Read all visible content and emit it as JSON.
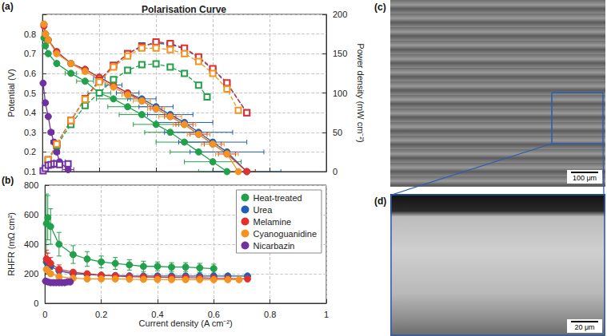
{
  "chart_data": [
    {
      "type": "line",
      "panel": "(a)",
      "title": "Polarisation Curve",
      "y_label": "Potential (V)",
      "y2_label": "Power density (mW cm⁻²)",
      "xlim": [
        0,
        1
      ],
      "xticks": [
        0,
        0.2,
        0.4,
        0.6,
        0.8,
        1
      ],
      "ylim": [
        0.1,
        0.9
      ],
      "yticks": [
        0.1,
        0.2,
        0.3,
        0.4,
        0.5,
        0.6,
        0.7,
        0.8
      ],
      "y2lim": [
        0,
        200
      ],
      "y2ticks": [
        0,
        50,
        100,
        150,
        200
      ],
      "grid": true,
      "tick_labels": "y",
      "series": [
        {
          "name": "Heat-treated",
          "color": "#23a04a",
          "marker": "circle",
          "line_style": "solid",
          "x": [
            0.005,
            0.01,
            0.02,
            0.05,
            0.1,
            0.15,
            0.2,
            0.25,
            0.3,
            0.35,
            0.4,
            0.45,
            0.5,
            0.55,
            0.6,
            0.65
          ],
          "values": [
            0.78,
            0.74,
            0.7,
            0.65,
            0.6,
            0.56,
            0.5,
            0.47,
            0.43,
            0.39,
            0.34,
            0.3,
            0.25,
            0.2,
            0.15,
            0.1
          ],
          "x_error": [
            null,
            null,
            null,
            null,
            0.02,
            0.03,
            0.04,
            0.06,
            0.07,
            0.08,
            0.08,
            0.09,
            0.1,
            0.1,
            0.1,
            0.1
          ]
        },
        {
          "name": "Urea",
          "color": "#1f5fb4",
          "marker": "circle",
          "line_style": "solid",
          "x": [
            0.005,
            0.01,
            0.02,
            0.05,
            0.1,
            0.15,
            0.2,
            0.25,
            0.3,
            0.35,
            0.4,
            0.45,
            0.5,
            0.55,
            0.6,
            0.65,
            0.72
          ],
          "values": [
            0.85,
            0.8,
            0.77,
            0.71,
            0.65,
            0.62,
            0.58,
            0.54,
            0.5,
            0.47,
            0.43,
            0.39,
            0.35,
            0.3,
            0.25,
            0.2,
            0.1
          ],
          "x_error": [
            null,
            null,
            null,
            null,
            null,
            null,
            0.02,
            0.03,
            0.04,
            0.05,
            0.06,
            0.08,
            0.1,
            0.12,
            0.12,
            0.13,
            0.12
          ]
        },
        {
          "name": "Melamine",
          "color": "#e2302d",
          "marker": "circle",
          "line_style": "solid",
          "x": [
            0.005,
            0.01,
            0.02,
            0.05,
            0.1,
            0.15,
            0.2,
            0.25,
            0.3,
            0.35,
            0.4,
            0.45,
            0.5,
            0.55,
            0.6,
            0.65,
            0.72
          ],
          "values": [
            0.84,
            0.8,
            0.77,
            0.71,
            0.65,
            0.62,
            0.58,
            0.54,
            0.5,
            0.46,
            0.42,
            0.38,
            0.34,
            0.29,
            0.24,
            0.19,
            0.1
          ],
          "x_error": [
            null,
            null,
            null,
            null,
            null,
            null,
            null,
            null,
            null,
            null,
            0.02,
            0.02,
            0.03,
            0.03,
            0.03,
            0.03,
            0.03
          ]
        },
        {
          "name": "Cyanoguanidine",
          "color": "#f39322",
          "marker": "circle",
          "line_style": "solid",
          "x": [
            0.005,
            0.01,
            0.02,
            0.05,
            0.1,
            0.15,
            0.2,
            0.25,
            0.3,
            0.35,
            0.4,
            0.45,
            0.5,
            0.55,
            0.6,
            0.65,
            0.69
          ],
          "values": [
            0.85,
            0.8,
            0.77,
            0.7,
            0.65,
            0.61,
            0.57,
            0.53,
            0.49,
            0.46,
            0.42,
            0.38,
            0.34,
            0.29,
            0.24,
            0.19,
            0.1
          ],
          "x_error": [
            null,
            null,
            null,
            null,
            null,
            null,
            null,
            null,
            0.02,
            0.03,
            0.03,
            0.04,
            0.04,
            0.04,
            0.04,
            0.04,
            0.04
          ]
        },
        {
          "name": "Nicarbazin",
          "color": "#7030a0",
          "marker": "circle",
          "line_style": "solid",
          "x": [
            0.002,
            0.01,
            0.02,
            0.03,
            0.04,
            0.05,
            0.06,
            0.09
          ],
          "values": [
            0.55,
            0.45,
            0.38,
            0.3,
            0.25,
            0.2,
            0.15,
            0.11
          ],
          "x_error": [
            null,
            null,
            null,
            0.01,
            0.01,
            0.01,
            0.02,
            0.02
          ]
        },
        {
          "name": "Heat-treated",
          "color": "#23a04a",
          "marker": "square",
          "line_style": "dashed",
          "axis": "y2",
          "x": [
            0.02,
            0.05,
            0.1,
            0.15,
            0.2,
            0.25,
            0.3,
            0.35,
            0.4,
            0.45,
            0.5,
            0.55,
            0.58
          ],
          "values": [
            14,
            33,
            60,
            84,
            100,
            117,
            129,
            136,
            137,
            133,
            125,
            110,
            95
          ]
        },
        {
          "name": "Urea",
          "color": "#1f5fb4",
          "marker": "square",
          "line_style": "dashed",
          "axis": "y2",
          "x": [
            0.02,
            0.05,
            0.1,
            0.15,
            0.2,
            0.25,
            0.3,
            0.35,
            0.4,
            0.45,
            0.5,
            0.55,
            0.6,
            0.65,
            0.72
          ],
          "values": [
            15,
            35,
            65,
            93,
            116,
            135,
            150,
            160,
            163,
            162,
            156,
            145,
            130,
            112,
            75
          ]
        },
        {
          "name": "Melamine",
          "color": "#e2302d",
          "marker": "square",
          "line_style": "dashed",
          "axis": "y2",
          "x": [
            0.02,
            0.05,
            0.1,
            0.15,
            0.2,
            0.25,
            0.3,
            0.35,
            0.4,
            0.45,
            0.5,
            0.55,
            0.6,
            0.65,
            0.72
          ],
          "values": [
            15,
            35,
            65,
            93,
            116,
            135,
            150,
            159,
            165,
            163,
            157,
            146,
            131,
            113,
            75
          ]
        },
        {
          "name": "Cyanoguanidine",
          "color": "#f39322",
          "marker": "square",
          "line_style": "dashed",
          "axis": "y2",
          "x": [
            0.02,
            0.05,
            0.1,
            0.15,
            0.2,
            0.25,
            0.3,
            0.35,
            0.4,
            0.45,
            0.5,
            0.55,
            0.6,
            0.65,
            0.69
          ],
          "values": [
            15,
            35,
            65,
            92,
            114,
            133,
            147,
            157,
            157,
            155,
            150,
            140,
            125,
            105,
            78
          ]
        },
        {
          "name": "Nicarbazin",
          "color": "#7030a0",
          "marker": "square",
          "line_style": "dashed",
          "axis": "y2",
          "x": [
            0.002,
            0.01,
            0.02,
            0.03,
            0.04,
            0.05,
            0.06,
            0.09
          ],
          "values": [
            1,
            4,
            8,
            9,
            10,
            10,
            9,
            10
          ]
        }
      ]
    },
    {
      "type": "line",
      "panel": "(b)",
      "x_label": "Current density (A cm⁻²)",
      "y_label": "RHFR (mΩ cm²)",
      "xlim": [
        0,
        1
      ],
      "xticks": [
        0,
        0.2,
        0.4,
        0.6,
        0.8,
        1
      ],
      "ylim": [
        0,
        800
      ],
      "yticks": [
        0,
        200,
        400,
        600,
        800
      ],
      "grid": true,
      "legend": "upper right",
      "series": [
        {
          "name": "Heat-treated",
          "color": "#23a04a",
          "marker": "circle",
          "line_style": "solid",
          "x": [
            0.005,
            0.01,
            0.02,
            0.05,
            0.1,
            0.15,
            0.2,
            0.25,
            0.3,
            0.35,
            0.4,
            0.45,
            0.5,
            0.55,
            0.6
          ],
          "values": [
            540,
            580,
            520,
            400,
            330,
            300,
            280,
            270,
            260,
            250,
            250,
            245,
            245,
            240,
            235
          ],
          "y_error": [
            200,
            150,
            120,
            80,
            60,
            50,
            40,
            40,
            35,
            35,
            30,
            30,
            30,
            30,
            30
          ]
        },
        {
          "name": "Urea",
          "color": "#1f5fb4",
          "marker": "circle",
          "line_style": "solid",
          "x": [
            0.005,
            0.01,
            0.02,
            0.05,
            0.1,
            0.15,
            0.2,
            0.25,
            0.3,
            0.35,
            0.4,
            0.45,
            0.5,
            0.55,
            0.6,
            0.65,
            0.72
          ],
          "values": [
            280,
            270,
            250,
            220,
            200,
            195,
            190,
            188,
            186,
            185,
            185,
            185,
            185,
            185,
            185,
            185,
            185
          ]
        },
        {
          "name": "Melamine",
          "color": "#e2302d",
          "marker": "circle",
          "line_style": "solid",
          "x": [
            0.005,
            0.01,
            0.02,
            0.05,
            0.1,
            0.15,
            0.2,
            0.25,
            0.3,
            0.35,
            0.4,
            0.45,
            0.5,
            0.55,
            0.6,
            0.65,
            0.72
          ],
          "values": [
            300,
            290,
            270,
            230,
            210,
            200,
            190,
            185,
            180,
            178,
            176,
            175,
            174,
            172,
            170,
            168,
            165
          ],
          "y_error": [
            60,
            50,
            40,
            30,
            null,
            null,
            null,
            null,
            null,
            null,
            null,
            null,
            null,
            null,
            null,
            null,
            null
          ]
        },
        {
          "name": "Cyanoguanidine",
          "color": "#f39322",
          "marker": "circle",
          "line_style": "solid",
          "x": [
            0.005,
            0.01,
            0.02,
            0.05,
            0.1,
            0.15,
            0.2,
            0.25,
            0.3,
            0.35,
            0.4,
            0.45,
            0.5,
            0.55,
            0.6,
            0.65,
            0.69
          ],
          "values": [
            230,
            220,
            200,
            180,
            170,
            165,
            165,
            165,
            163,
            162,
            161,
            160,
            160,
            160,
            160,
            160,
            160
          ]
        },
        {
          "name": "Nicarbazin",
          "color": "#7030a0",
          "marker": "circle",
          "line_style": "solid",
          "x": [
            0.002,
            0.01,
            0.02,
            0.03,
            0.04,
            0.05,
            0.06,
            0.07,
            0.08,
            0.09
          ],
          "values": [
            150,
            145,
            140,
            140,
            140,
            140,
            140,
            140,
            145,
            145
          ]
        }
      ]
    }
  ],
  "images": [
    {
      "panel": "(c)",
      "scale_bar": "100 μm"
    },
    {
      "panel": "(d)",
      "scale_bar": "20 μm"
    }
  ]
}
